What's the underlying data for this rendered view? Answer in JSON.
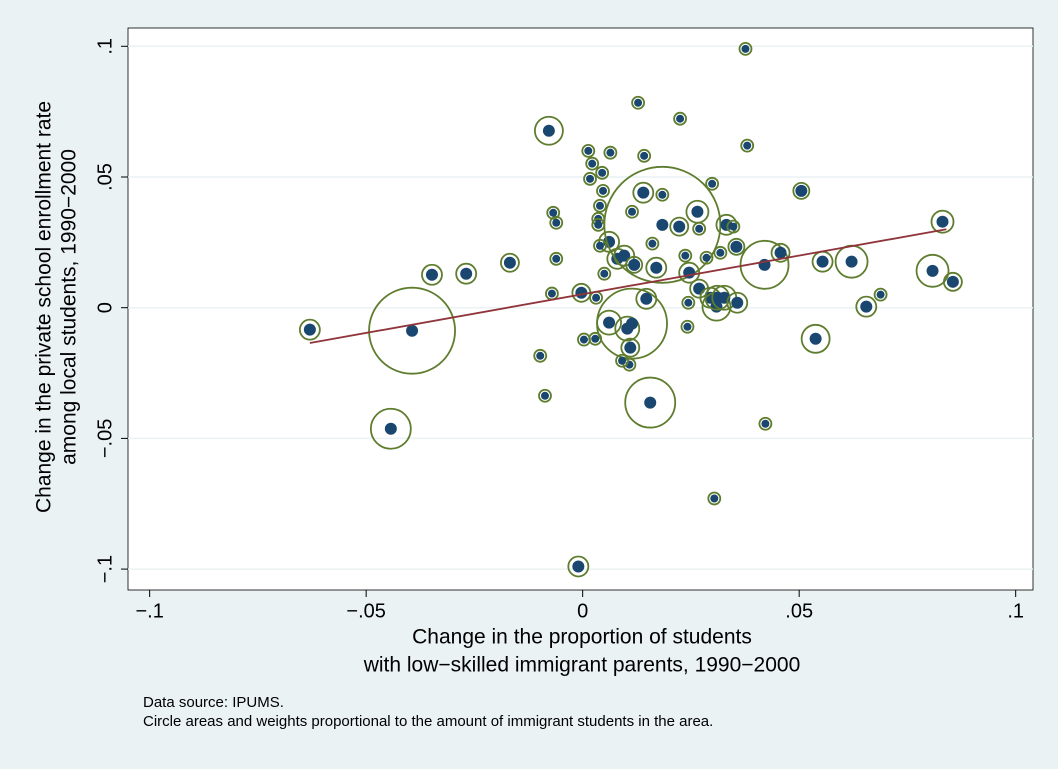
{
  "chart_data": {
    "type": "scatter",
    "y_label": [
      "Change in the private school enrollment rate",
      "among local students, 1990−2000"
    ],
    "x_label": [
      "Change in the proportion of students",
      "with low−skilled immigrant parents, 1990−2000"
    ],
    "notes": [
      "Data source:  IPUMS.",
      "Circle areas and weights proportional to the amount of immigrant students in the area."
    ],
    "xlim": [
      -0.105,
      0.104
    ],
    "ylim": [
      -0.108,
      0.107
    ],
    "xticks": [
      {
        "value": -0.1,
        "label": "−.1"
      },
      {
        "value": -0.05,
        "label": "−.05"
      },
      0,
      {
        "value": 0.05,
        "label": ".05"
      },
      {
        "value": 0.1,
        "label": ".1"
      }
    ],
    "yticks": [
      {
        "value": -0.1,
        "label": "−.1"
      },
      {
        "value": -0.05,
        "label": "−.05"
      },
      0,
      {
        "value": 0.05,
        "label": ".05"
      },
      {
        "value": 0.1,
        "label": ".1"
      }
    ],
    "grid": true,
    "series": [
      {
        "color": "#1a476f",
        "edge_color": "#5f7d2e",
        "x": [
          -0.063,
          -0.0394,
          -0.0443,
          -0.0348,
          -0.0269,
          -0.0168,
          -0.0098,
          -0.0087,
          -0.0071,
          -0.0078,
          -0.0061,
          -0.0061,
          -0.0068,
          -0.001,
          -0.0003,
          0.0003,
          0.0013,
          0.0017,
          0.0022,
          0.0029,
          0.0036,
          0.0036,
          0.004,
          0.0045,
          0.0047,
          0.0064,
          0.0061,
          0.0061,
          0.0031,
          0.005,
          0.004,
          0.008,
          0.0096,
          0.0103,
          0.0114,
          0.011,
          0.0108,
          0.0091,
          0.0114,
          0.0119,
          0.0128,
          0.014,
          0.0142,
          0.0147,
          0.0161,
          0.017,
          0.0156,
          0.0184,
          0.0184,
          0.0225,
          0.0223,
          0.0237,
          0.0242,
          0.0244,
          0.0246,
          0.0265,
          0.0269,
          0.0269,
          0.0286,
          0.0299,
          0.0295,
          0.0304,
          0.0309,
          0.0311,
          0.0318,
          0.0327,
          0.0332,
          0.0348,
          0.0355,
          0.0357,
          0.0376,
          0.038,
          0.042,
          0.0422,
          0.0457,
          0.0505,
          0.0538,
          0.0554,
          0.0621,
          0.0655,
          0.0688,
          0.0808,
          0.0831,
          0.0855
        ],
        "values": [
          -0.0084,
          -0.0088,
          -0.0463,
          0.0126,
          0.013,
          0.0172,
          -0.0184,
          -0.0337,
          0.0054,
          0.0677,
          0.0325,
          0.0187,
          0.0363,
          -0.099,
          0.0057,
          -0.0122,
          0.06,
          0.0493,
          0.0551,
          -0.0119,
          0.034,
          0.0317,
          0.039,
          0.0516,
          0.0447,
          0.0593,
          0.0252,
          -0.0057,
          0.0038,
          0.013,
          0.0237,
          0.0187,
          0.0199,
          -0.008,
          -0.0061,
          -0.0153,
          -0.0218,
          -0.0203,
          0.0367,
          0.0164,
          0.0784,
          0.044,
          0.0581,
          0.0034,
          0.0245,
          0.0153,
          -0.0363,
          0.0317,
          0.0432,
          0.0723,
          0.031,
          0.0199,
          -0.0073,
          0.0019,
          0.0134,
          0.0367,
          0.0302,
          0.0073,
          0.0191,
          0.0474,
          0.0038,
          -0.073,
          0.0004,
          0.0038,
          0.021,
          0.0038,
          0.0317,
          0.031,
          0.0233,
          0.0019,
          0.099,
          0.062,
          0.0164,
          -0.0444,
          0.021,
          0.0447,
          -0.0119,
          0.0176,
          0.0176,
          0.0004,
          0.005,
          0.0141,
          0.0329,
          0.0099
        ],
        "sizes": [
          100,
          1849,
          400,
          100,
          100,
          81,
          36,
          36,
          36,
          196,
          36,
          36,
          36,
          100,
          81,
          36,
          36,
          36,
          36,
          36,
          36,
          36,
          36,
          36,
          36,
          36,
          100,
          144,
          36,
          36,
          36,
          100,
          100,
          144,
          1225,
          81,
          36,
          36,
          36,
          64,
          36,
          100,
          36,
          100,
          36,
          100,
          625,
          3364,
          36,
          36,
          81,
          36,
          36,
          36,
          100,
          121,
          36,
          81,
          36,
          36,
          100,
          36,
          196,
          144,
          36,
          144,
          100,
          36,
          64,
          100,
          36,
          36,
          576,
          36,
          81,
          64,
          196,
          100,
          256,
          100,
          36,
          256,
          121,
          81
        ]
      }
    ],
    "fit_line": {
      "x": [
        -0.063,
        0.084
      ],
      "y": [
        -0.0135,
        0.03
      ],
      "color": "#90353b"
    }
  }
}
